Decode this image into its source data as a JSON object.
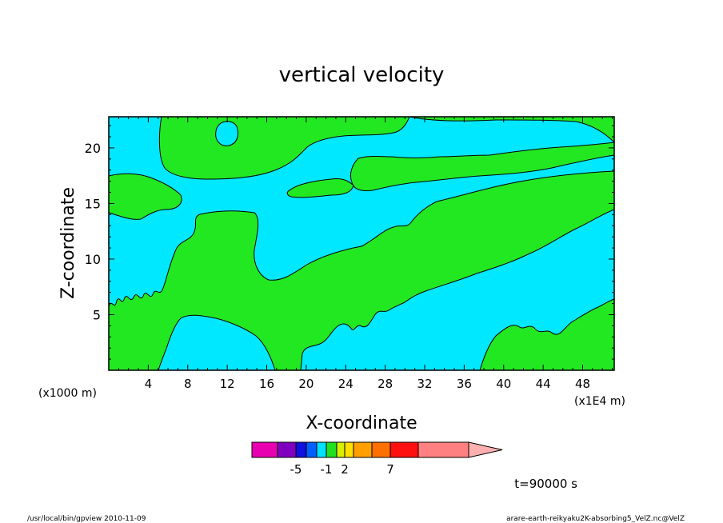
{
  "chart_data": {
    "type": "heatmap",
    "title": "vertical velocity",
    "xlabel": "X-coordinate",
    "ylabel": "Z-coordinate",
    "x_units_left": "(x1000 m)",
    "x_units_right": "(x1E4 m)",
    "x_ticks": [
      "4",
      "8",
      "12",
      "16",
      "20",
      "24",
      "28",
      "32",
      "36",
      "40",
      "44",
      "48"
    ],
    "y_ticks": [
      "5",
      "10",
      "15",
      "20"
    ],
    "x_tick_values": [
      4,
      8,
      12,
      16,
      20,
      24,
      28,
      32,
      36,
      40,
      44,
      48
    ],
    "y_tick_values": [
      5,
      10,
      15,
      20
    ],
    "xlim": [
      0,
      51.2
    ],
    "ylim": [
      0,
      22.8
    ],
    "fill_colors": {
      "negative": "#00e8ff",
      "positive": "#22e822"
    },
    "colorbar": {
      "colors": [
        "#e800b0",
        "#8000c0",
        "#1010e0",
        "#0060ff",
        "#00e0ff",
        "#20e020",
        "#d8f000",
        "#ffe000",
        "#ffa000",
        "#ff7000",
        "#ff1010",
        "#ff8080"
      ],
      "extend_color": "#ffb0b0",
      "labels": [
        "-5",
        "-1",
        "2",
        "7"
      ]
    },
    "time_label": "t=90000 s"
  },
  "footer": {
    "left": "/usr/local/bin/gpview   2010-11-09",
    "right": "arare-earth-reikyaku2K-absorbing5_VelZ.nc@VelZ"
  }
}
